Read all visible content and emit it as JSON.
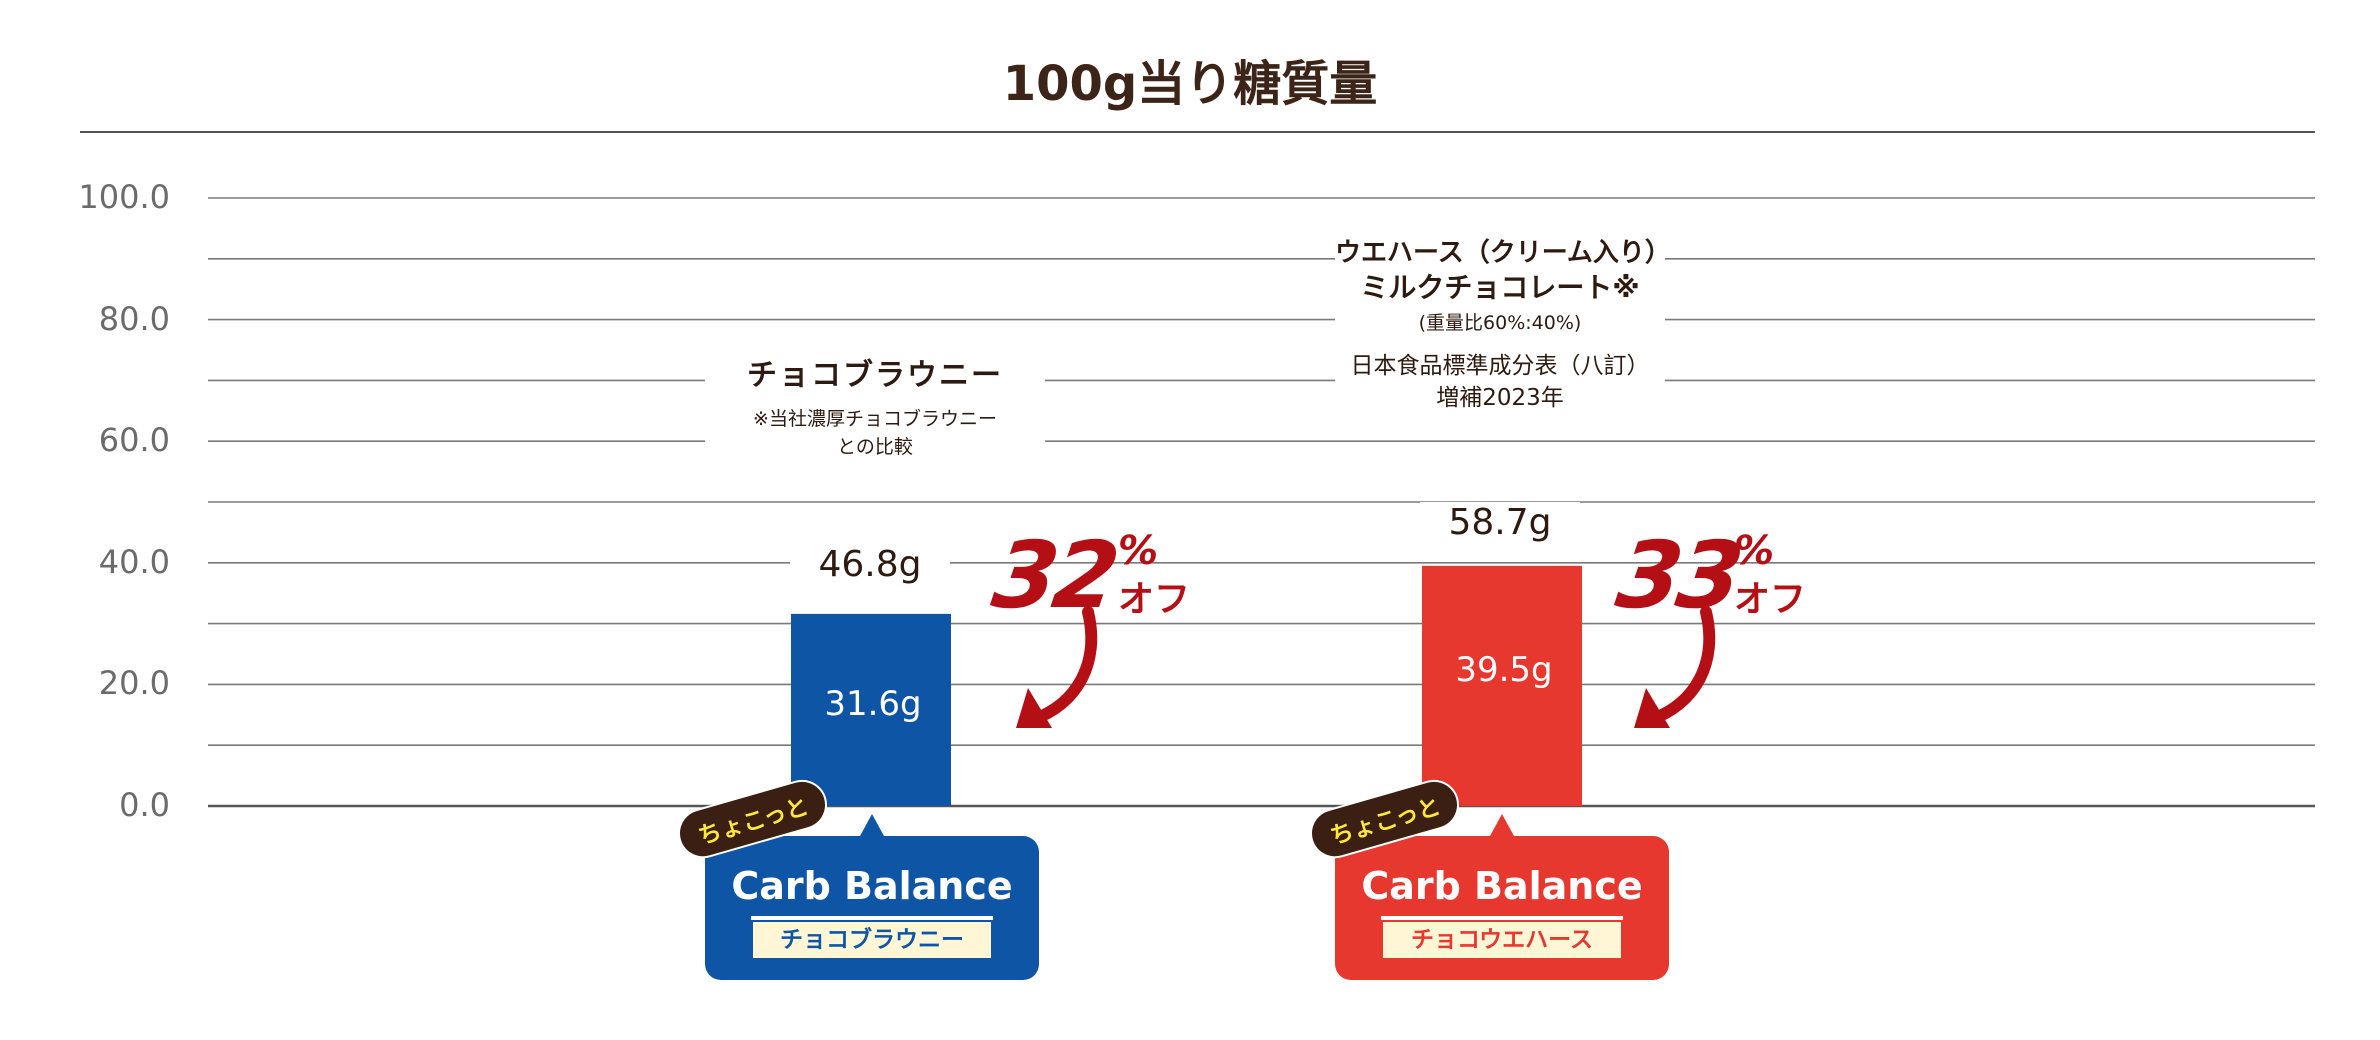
{
  "chart_data": {
    "type": "bar",
    "title": "100g当り糖質量",
    "yticks": [
      "100.0",
      "80.0",
      "60.0",
      "40.0",
      "20.0",
      "0.0"
    ],
    "ylim": [
      0,
      100
    ],
    "grid": true,
    "groups": [
      {
        "reference": {
          "value": 46.8,
          "value_label": "46.8g",
          "name": "チョコブラウニー",
          "note_lines": [
            "※当社濃厚チョコブラウニー",
            "との比較"
          ]
        },
        "product": {
          "value": 31.6,
          "value_label": "31.6g",
          "color": "#0f55a5",
          "tag": "ちょこっと",
          "brand": "Carb Balance",
          "name": "チョコブラウニー"
        },
        "reduction": {
          "number": "32",
          "percent": "%",
          "suffix": "オフ"
        }
      },
      {
        "reference": {
          "value": 58.7,
          "value_label": "58.7g",
          "name_lines": [
            "ウエハース（クリーム入り）",
            "ミルクチョコレート※"
          ],
          "note_lines": [
            "(重量比60%:40%)"
          ],
          "source_lines": [
            "日本食品標準成分表（八訂）",
            "増補2023年"
          ]
        },
        "product": {
          "value": 39.5,
          "value_label": "39.5g",
          "color": "#e73830",
          "tag": "ちょこっと",
          "brand": "Carb Balance",
          "name": "チョコウエハース"
        },
        "reduction": {
          "number": "33",
          "percent": "%",
          "suffix": "オフ"
        }
      }
    ]
  },
  "colors": {
    "blue": "#0f55a5",
    "red": "#e73830",
    "accent": "#b40f14",
    "text": "#3d2418"
  }
}
